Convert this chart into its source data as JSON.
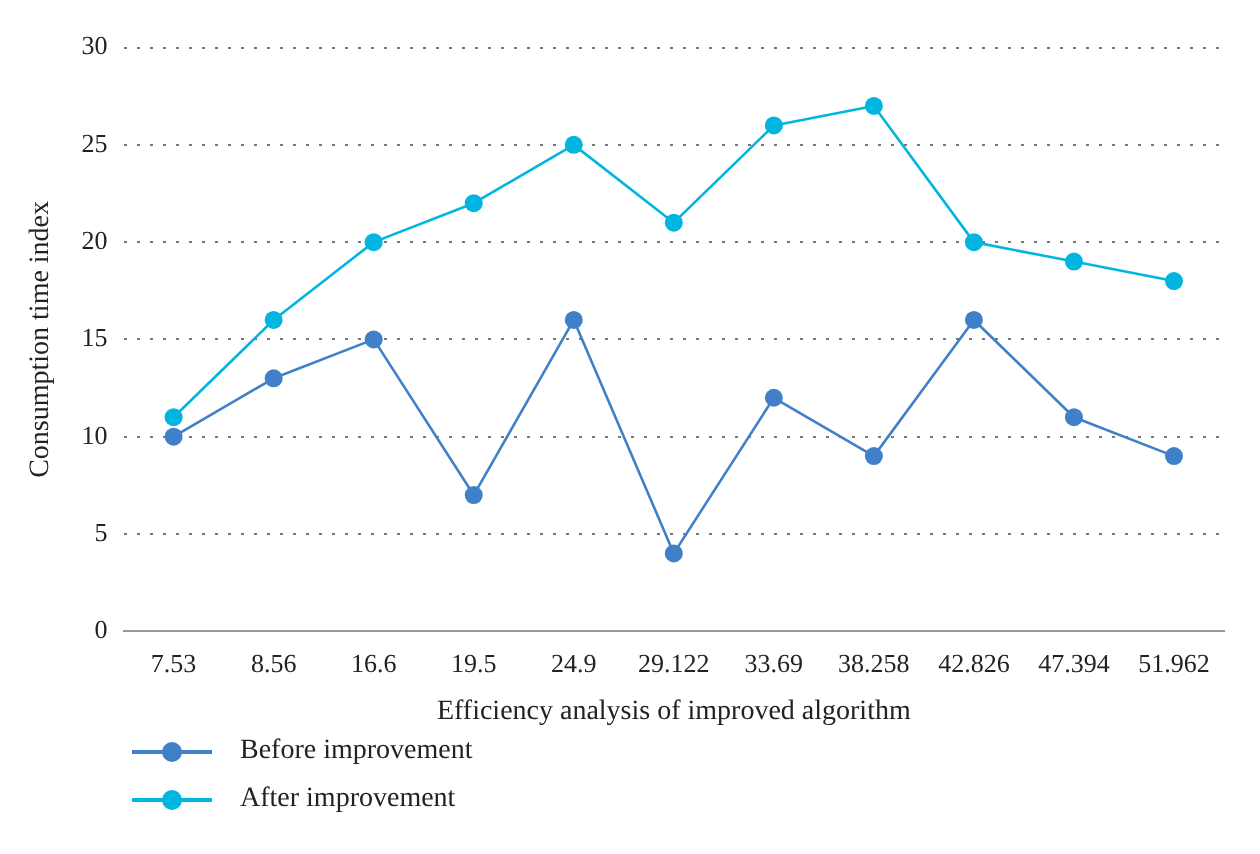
{
  "chart_data": {
    "type": "line",
    "xlabel": "Efficiency analysis of improved algorithm",
    "ylabel": "Consumption time index",
    "categories": [
      "7.53",
      "8.56",
      "16.6",
      "19.5",
      "24.9",
      "29.122",
      "33.69",
      "38.258",
      "42.826",
      "47.394",
      "51.962"
    ],
    "series": [
      {
        "name": "Before improvement",
        "color": "#3f80c8",
        "values": [
          10,
          13,
          15,
          7,
          16,
          4,
          12,
          9,
          16,
          11,
          9
        ]
      },
      {
        "name": "After improvement",
        "color": "#00b6e0",
        "values": [
          11,
          16,
          20,
          22,
          25,
          21,
          26,
          27,
          20,
          19,
          18
        ]
      }
    ],
    "ylim": [
      0,
      30
    ],
    "yticks": [
      0,
      5,
      10,
      15,
      20,
      25,
      30
    ],
    "grid": "y",
    "legend": "bottom left",
    "marker": "circle",
    "line_style": "solid"
  }
}
